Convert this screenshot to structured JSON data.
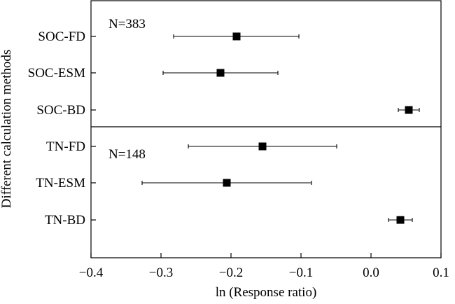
{
  "chart_data": {
    "type": "scatter",
    "subtype": "forest-plot",
    "xlabel": "ln (Response ratio)",
    "ylabel": "Different calculation methods",
    "xlim": [
      -0.4,
      0.1
    ],
    "xticks": [
      -0.4,
      -0.3,
      -0.2,
      -0.1,
      0.0,
      0.1
    ],
    "xtick_labels": [
      "−0.4",
      "−0.3",
      "−0.2",
      "−0.1",
      "0.0",
      "0.1"
    ],
    "grid": false,
    "panels": [
      {
        "annotation": "N=383",
        "categories": [
          "SOC-FD",
          "SOC-ESM",
          "SOC-BD"
        ],
        "estimates": [
          -0.192,
          -0.215,
          0.054
        ],
        "ci_lower": [
          -0.282,
          -0.297,
          0.039
        ],
        "ci_upper": [
          -0.103,
          -0.133,
          0.069
        ]
      },
      {
        "annotation": "N=148",
        "categories": [
          "TN-FD",
          "TN-ESM",
          "TN-BD"
        ],
        "estimates": [
          -0.155,
          -0.206,
          0.042
        ],
        "ci_lower": [
          -0.261,
          -0.327,
          0.025
        ],
        "ci_upper": [
          -0.049,
          -0.085,
          0.059
        ]
      }
    ]
  }
}
